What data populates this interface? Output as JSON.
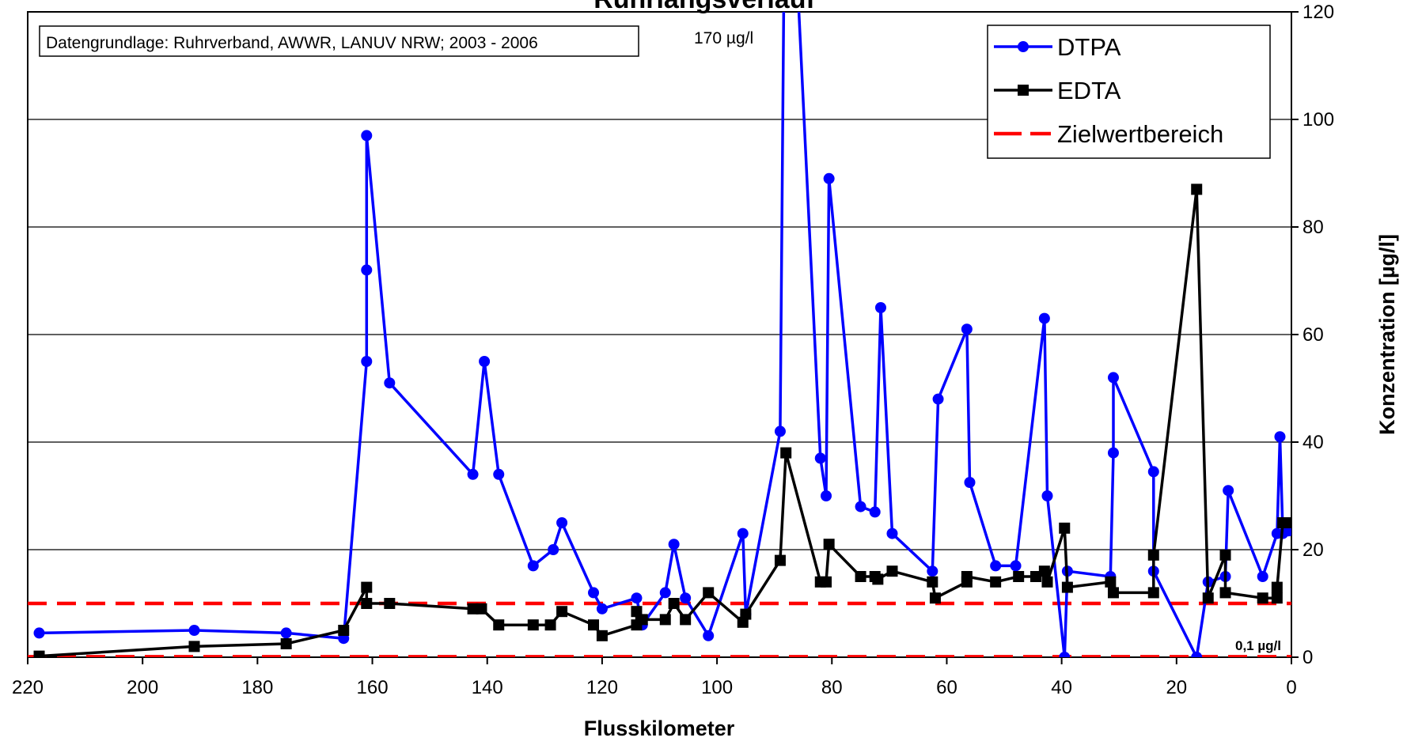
{
  "chart_data": {
    "type": "line",
    "title": "Ruhrlängsverlauf",
    "xlabel": "Flusskilometer",
    "ylabel": "Konzentration [µg/l]",
    "xlim": [
      220,
      0
    ],
    "ylim": [
      0,
      120
    ],
    "x_ticks": [
      "220",
      "200",
      "180",
      "160",
      "140",
      "120",
      "100",
      "80",
      "60",
      "40",
      "20",
      "0"
    ],
    "y_ticks": [
      "0",
      "20",
      "40",
      "60",
      "80",
      "100",
      "120"
    ],
    "grid": true,
    "legend_position": "top-right",
    "source_note": "Datengrundlage: Ruhrverband, AWWR, LANUV NRW; 2003 - 2006",
    "annotations": {
      "peak": "170 µg/l",
      "lower_target": "0,1 µg/l"
    },
    "series": [
      {
        "name": "DTPA",
        "color": "#0000ff",
        "marker": "circle",
        "x": [
          218,
          191,
          175,
          165,
          161,
          161,
          161,
          157,
          142.5,
          140.5,
          138,
          132,
          128.5,
          127,
          121.5,
          120,
          114,
          113,
          109,
          107.5,
          105.5,
          101.5,
          95.5,
          95,
          89,
          88,
          82,
          81,
          80.5,
          75,
          72.5,
          71.5,
          69.5,
          62.5,
          61.5,
          56.5,
          56,
          51.5,
          48,
          43,
          42.5,
          39.5,
          39,
          31.5,
          31,
          31,
          24,
          24,
          16.5,
          14.5,
          11.5,
          11,
          5,
          2.5,
          2,
          1.5,
          0.5
        ],
        "y": [
          4.5,
          5,
          4.5,
          3.5,
          55,
          72,
          97,
          51,
          34,
          55,
          34,
          17,
          20,
          25,
          12,
          9,
          11,
          6,
          12,
          21,
          11,
          4,
          23,
          8,
          42,
          170,
          37,
          30,
          89,
          28,
          27,
          65,
          23,
          16,
          48,
          61,
          32.5,
          17,
          17,
          63,
          30,
          0,
          16,
          15,
          38,
          52,
          34.5,
          16,
          0,
          14,
          15,
          31,
          15,
          23,
          41,
          23,
          23.5
        ]
      },
      {
        "name": "EDTA",
        "color": "#000000",
        "marker": "square",
        "x": [
          218,
          191,
          175,
          165,
          161,
          161,
          157,
          142.5,
          141,
          138,
          132,
          129,
          127,
          121.5,
          120,
          114,
          114,
          113,
          109,
          107.5,
          105.5,
          101.5,
          95.5,
          95,
          89,
          88,
          82,
          81,
          80.5,
          75,
          72.5,
          72,
          69.5,
          62.5,
          62,
          56.5,
          56.5,
          51.5,
          47.5,
          44.5,
          43,
          42.5,
          39.5,
          39,
          31.5,
          31,
          24,
          24,
          16.5,
          14.5,
          11.5,
          11.5,
          5,
          2.5,
          2.5,
          1.5,
          0.5
        ],
        "y": [
          0.2,
          2,
          2.5,
          5,
          13,
          10,
          10,
          9,
          9,
          6,
          6,
          6,
          8.5,
          6,
          4,
          6,
          8.5,
          7,
          7,
          10,
          7,
          12,
          6.5,
          8,
          18,
          38,
          14,
          14,
          21,
          15,
          15,
          14.5,
          16,
          14,
          11,
          14,
          15,
          14,
          15,
          15,
          16,
          14,
          24,
          13,
          14,
          12,
          12,
          19,
          87,
          11,
          19,
          12,
          11,
          11,
          13,
          25,
          25
        ]
      }
    ],
    "reference_lines": [
      {
        "name": "Zielwertbereich",
        "color": "#ff0000",
        "y": 10
      },
      {
        "y": 0.1,
        "color": "#ff0000"
      }
    ]
  }
}
